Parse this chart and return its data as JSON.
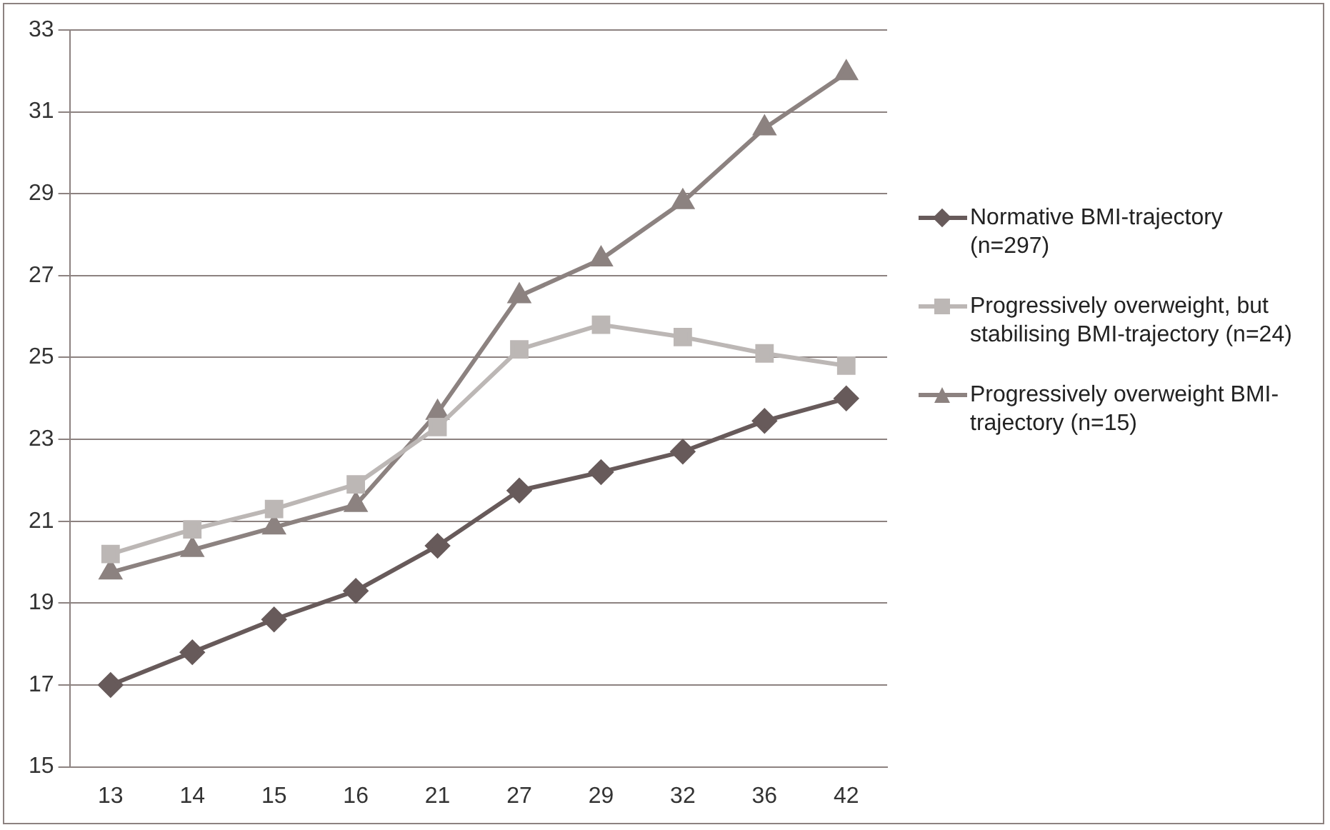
{
  "chart_data": {
    "type": "line",
    "categories": [
      "13",
      "14",
      "15",
      "16",
      "21",
      "27",
      "29",
      "32",
      "36",
      "42"
    ],
    "series": [
      {
        "name": "Normative BMI-trajectory (n=297)",
        "color": "#675a5a",
        "marker": "diamond",
        "values": [
          17.0,
          17.8,
          18.6,
          19.3,
          20.4,
          21.75,
          22.2,
          22.7,
          23.45,
          24.0
        ]
      },
      {
        "name": "Progressively overweight, but stabilising BMI-trajectory (n=24)",
        "color": "#bcb7b5",
        "marker": "square",
        "values": [
          20.2,
          20.8,
          21.3,
          21.9,
          23.3,
          25.2,
          25.8,
          25.5,
          25.1,
          24.8
        ]
      },
      {
        "name": "Progressively overweight BMI-trajectory (n=15)",
        "color": "#8c8280",
        "marker": "triangle",
        "values": [
          19.75,
          20.3,
          20.85,
          21.4,
          23.65,
          26.5,
          27.4,
          28.8,
          30.6,
          31.95
        ]
      }
    ],
    "ylim": [
      15,
      33
    ],
    "yticks": [
      15,
      17,
      19,
      21,
      23,
      25,
      27,
      29,
      31,
      33
    ],
    "grid": "y",
    "legend": "right"
  }
}
